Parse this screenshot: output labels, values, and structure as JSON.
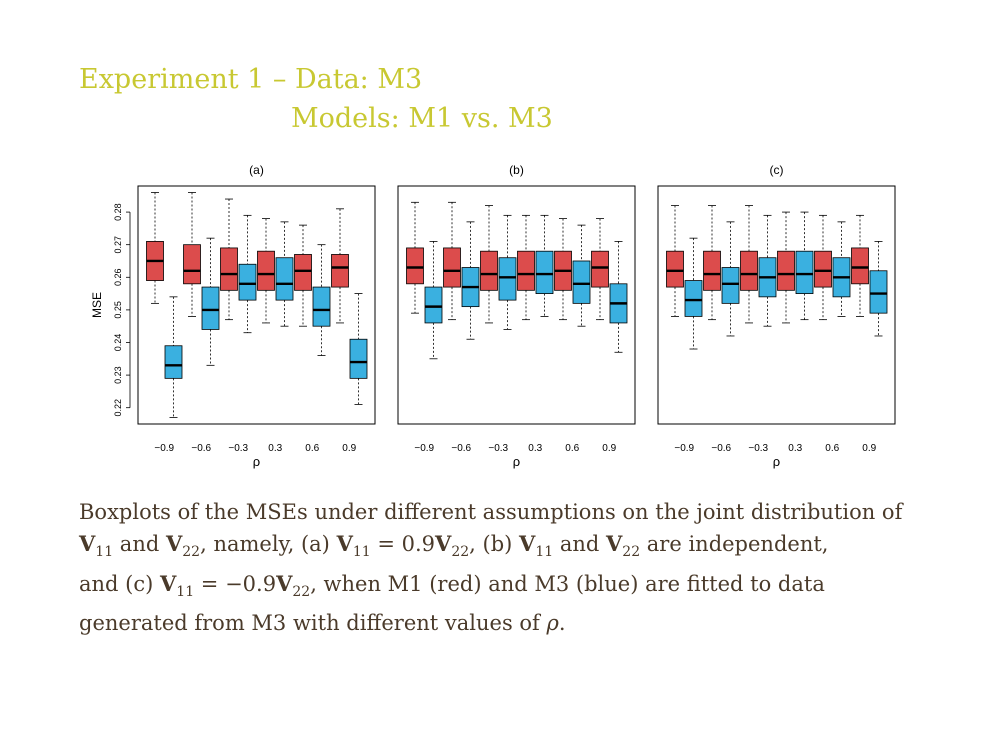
{
  "slide": {
    "title_line1": "Experiment 1 – Data: M3",
    "title_line2": "Models: M1 vs. M3"
  },
  "colors": {
    "title": "#c8c832",
    "m1": "#dc4c4c",
    "m3": "#3ab0e0",
    "caption": "#4a3a2a"
  },
  "chart_data": [
    {
      "type": "boxplot",
      "title": "(a)",
      "xlabel": "ρ",
      "ylabel": "MSE",
      "ylim": [
        0.215,
        0.288
      ],
      "yticks": [
        "0.22",
        "0.23",
        "0.24",
        "0.25",
        "0.26",
        "0.27",
        "0.28"
      ],
      "xticks": [
        "−0.9",
        "−0.6",
        "−0.3",
        "0.3",
        "0.6",
        "0.9"
      ],
      "series": [
        {
          "color": "red",
          "boxes": [
            {
              "min": 0.252,
              "q1": 0.259,
              "median": 0.265,
              "q3": 0.271,
              "max": 0.286
            },
            {
              "min": 0.248,
              "q1": 0.258,
              "median": 0.262,
              "q3": 0.27,
              "max": 0.286
            },
            {
              "min": 0.247,
              "q1": 0.256,
              "median": 0.261,
              "q3": 0.269,
              "max": 0.284
            },
            {
              "min": 0.246,
              "q1": 0.256,
              "median": 0.261,
              "q3": 0.268,
              "max": 0.278
            },
            {
              "min": 0.245,
              "q1": 0.256,
              "median": 0.262,
              "q3": 0.267,
              "max": 0.276
            },
            {
              "min": 0.246,
              "q1": 0.257,
              "median": 0.263,
              "q3": 0.267,
              "max": 0.281
            }
          ]
        },
        {
          "color": "blue",
          "boxes": [
            {
              "min": 0.217,
              "q1": 0.229,
              "median": 0.233,
              "q3": 0.239,
              "max": 0.254
            },
            {
              "min": 0.233,
              "q1": 0.244,
              "median": 0.25,
              "q3": 0.257,
              "max": 0.272
            },
            {
              "min": 0.243,
              "q1": 0.253,
              "median": 0.258,
              "q3": 0.264,
              "max": 0.279
            },
            {
              "min": 0.245,
              "q1": 0.253,
              "median": 0.258,
              "q3": 0.266,
              "max": 0.277
            },
            {
              "min": 0.236,
              "q1": 0.245,
              "median": 0.25,
              "q3": 0.257,
              "max": 0.27
            },
            {
              "min": 0.221,
              "q1": 0.229,
              "median": 0.234,
              "q3": 0.241,
              "max": 0.255
            }
          ]
        }
      ]
    },
    {
      "type": "boxplot",
      "title": "(b)",
      "xlabel": "ρ",
      "xticks": [
        "−0.9",
        "−0.6",
        "−0.3",
        "0.3",
        "0.6",
        "0.9"
      ],
      "series": [
        {
          "color": "red",
          "boxes": [
            {
              "min": 0.249,
              "q1": 0.258,
              "median": 0.263,
              "q3": 0.269,
              "max": 0.283
            },
            {
              "min": 0.247,
              "q1": 0.257,
              "median": 0.262,
              "q3": 0.269,
              "max": 0.283
            },
            {
              "min": 0.246,
              "q1": 0.256,
              "median": 0.261,
              "q3": 0.268,
              "max": 0.282
            },
            {
              "min": 0.247,
              "q1": 0.256,
              "median": 0.261,
              "q3": 0.268,
              "max": 0.279
            },
            {
              "min": 0.247,
              "q1": 0.256,
              "median": 0.262,
              "q3": 0.268,
              "max": 0.278
            },
            {
              "min": 0.247,
              "q1": 0.257,
              "median": 0.263,
              "q3": 0.268,
              "max": 0.278
            }
          ]
        },
        {
          "color": "blue",
          "boxes": [
            {
              "min": 0.235,
              "q1": 0.246,
              "median": 0.251,
              "q3": 0.257,
              "max": 0.271
            },
            {
              "min": 0.241,
              "q1": 0.251,
              "median": 0.257,
              "q3": 0.263,
              "max": 0.277
            },
            {
              "min": 0.244,
              "q1": 0.253,
              "median": 0.26,
              "q3": 0.266,
              "max": 0.279
            },
            {
              "min": 0.248,
              "q1": 0.255,
              "median": 0.261,
              "q3": 0.268,
              "max": 0.279
            },
            {
              "min": 0.245,
              "q1": 0.252,
              "median": 0.258,
              "q3": 0.265,
              "max": 0.276
            },
            {
              "min": 0.237,
              "q1": 0.246,
              "median": 0.252,
              "q3": 0.258,
              "max": 0.271
            }
          ]
        }
      ]
    },
    {
      "type": "boxplot",
      "title": "(c)",
      "xlabel": "ρ",
      "xticks": [
        "−0.9",
        "−0.6",
        "−0.3",
        "0.3",
        "0.6",
        "0.9"
      ],
      "series": [
        {
          "color": "red",
          "boxes": [
            {
              "min": 0.248,
              "q1": 0.257,
              "median": 0.262,
              "q3": 0.268,
              "max": 0.282
            },
            {
              "min": 0.247,
              "q1": 0.256,
              "median": 0.261,
              "q3": 0.268,
              "max": 0.282
            },
            {
              "min": 0.246,
              "q1": 0.256,
              "median": 0.261,
              "q3": 0.268,
              "max": 0.282
            },
            {
              "min": 0.246,
              "q1": 0.256,
              "median": 0.261,
              "q3": 0.268,
              "max": 0.28
            },
            {
              "min": 0.247,
              "q1": 0.257,
              "median": 0.262,
              "q3": 0.268,
              "max": 0.279
            },
            {
              "min": 0.248,
              "q1": 0.258,
              "median": 0.263,
              "q3": 0.269,
              "max": 0.279
            }
          ]
        },
        {
          "color": "blue",
          "boxes": [
            {
              "min": 0.238,
              "q1": 0.248,
              "median": 0.253,
              "q3": 0.259,
              "max": 0.272
            },
            {
              "min": 0.242,
              "q1": 0.252,
              "median": 0.258,
              "q3": 0.263,
              "max": 0.277
            },
            {
              "min": 0.245,
              "q1": 0.254,
              "median": 0.26,
              "q3": 0.266,
              "max": 0.279
            },
            {
              "min": 0.247,
              "q1": 0.255,
              "median": 0.261,
              "q3": 0.268,
              "max": 0.28
            },
            {
              "min": 0.248,
              "q1": 0.254,
              "median": 0.26,
              "q3": 0.266,
              "max": 0.277
            },
            {
              "min": 0.242,
              "q1": 0.249,
              "median": 0.255,
              "q3": 0.262,
              "max": 0.271
            }
          ]
        }
      ]
    }
  ],
  "caption": {
    "p1": "Boxplots of the MSEs under different assumptions on the joint distribution of",
    "v": "V",
    "sub11": "11",
    "sub22": "22",
    "and": " and ",
    "namely_a": ", namely, (a) ",
    "eq_pos": " = 0.9",
    "b_part": ", (b) ",
    "indep": " are independent,",
    "c_part": "and (c) ",
    "eq_neg": " = −0.9",
    "rest": ", when M1 (red) and M3 (blue) are fitted to data",
    "last": "generated from M3 with different values of ",
    "rho": "ρ",
    "period": "."
  }
}
